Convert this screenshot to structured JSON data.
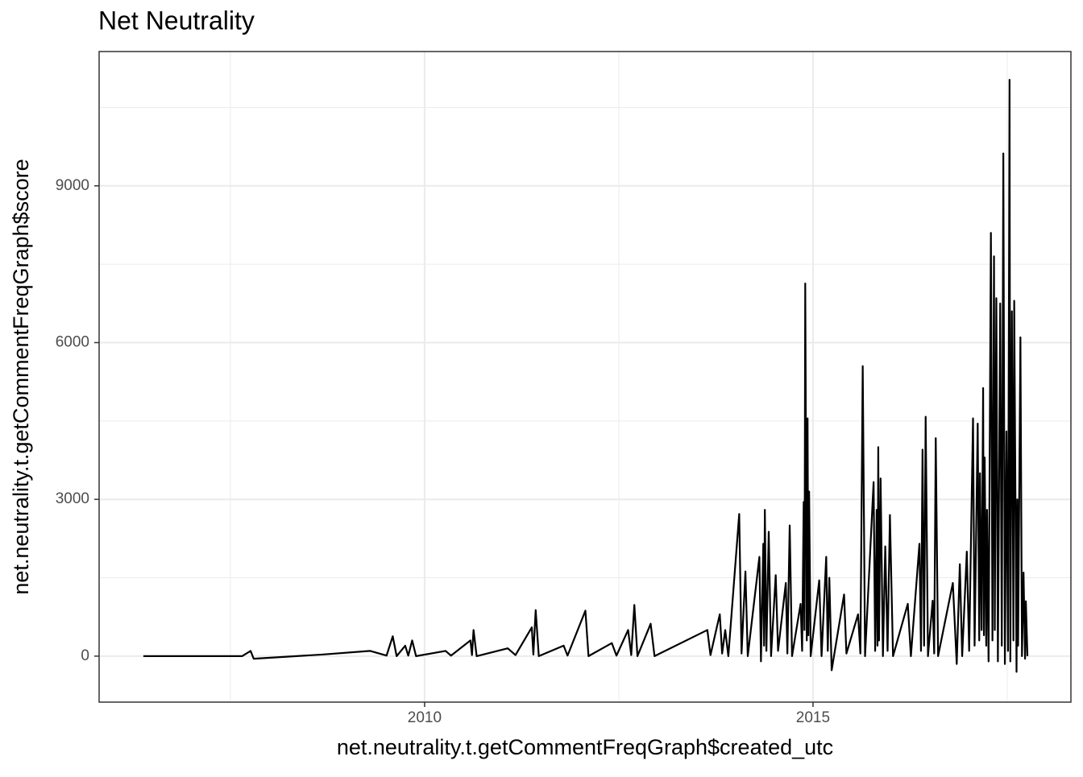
{
  "chart_data": {
    "type": "line",
    "title": "Net Neutrality",
    "x_label": "net.neutrality.t.getCommentFreqGraph$created_utc",
    "y_label": "net.neutrality.t.getCommentFreqGraph$score",
    "x": [
      2006.38,
      2007.65,
      2007.76,
      2007.8,
      2008.68,
      2009.3,
      2009.51,
      2009.59,
      2009.64,
      2009.75,
      2009.79,
      2009.84,
      2009.89,
      2010.27,
      2010.34,
      2010.59,
      2010.61,
      2010.63,
      2010.67,
      2011.07,
      2011.17,
      2011.38,
      2011.4,
      2011.43,
      2011.47,
      2011.79,
      2011.84,
      2012.07,
      2012.11,
      2012.41,
      2012.47,
      2012.62,
      2012.66,
      2012.7,
      2012.74,
      2012.91,
      2012.96,
      2013.64,
      2013.68,
      2013.8,
      2013.83,
      2013.87,
      2013.91,
      2014.05,
      2014.08,
      2014.13,
      2014.16,
      2014.31,
      2014.33,
      2014.36,
      2014.37,
      2014.38,
      2014.4,
      2014.43,
      2014.46,
      2014.52,
      2014.55,
      2014.65,
      2014.67,
      2014.7,
      2014.73,
      2014.84,
      2014.86,
      2014.88,
      2014.89,
      2014.9,
      2014.92,
      2014.93,
      2014.94,
      2014.95,
      2014.97,
      2015.08,
      2015.11,
      2015.17,
      2015.19,
      2015.21,
      2015.24,
      2015.4,
      2015.43,
      2015.58,
      2015.61,
      2015.64,
      2015.67,
      2015.78,
      2015.8,
      2015.82,
      2015.83,
      2015.84,
      2015.85,
      2015.87,
      2015.9,
      2015.93,
      2015.96,
      2015.99,
      2016.03,
      2016.22,
      2016.26,
      2016.37,
      2016.39,
      2016.41,
      2016.43,
      2016.45,
      2016.48,
      2016.54,
      2016.56,
      2016.58,
      2016.61,
      2016.8,
      2016.85,
      2016.89,
      2016.92,
      2016.98,
      2017.01,
      2017.06,
      2017.08,
      2017.12,
      2017.14,
      2017.15,
      2017.17,
      2017.19,
      2017.2,
      2017.21,
      2017.23,
      2017.24,
      2017.26,
      2017.29,
      2017.31,
      2017.33,
      2017.34,
      2017.36,
      2017.38,
      2017.41,
      2017.43,
      2017.45,
      2017.47,
      2017.49,
      2017.51,
      2017.53,
      2017.54,
      2017.56,
      2017.58,
      2017.59,
      2017.62,
      2017.63,
      2017.64,
      2017.67,
      2017.69,
      2017.71,
      2017.73,
      2017.74,
      2017.76
    ],
    "series": [
      {
        "name": "score",
        "color": "#000000",
        "values": [
          0,
          0,
          100,
          -50,
          30,
          100,
          10,
          380,
          0,
          200,
          10,
          300,
          0,
          100,
          10,
          300,
          20,
          500,
          0,
          150,
          20,
          550,
          30,
          880,
          0,
          200,
          10,
          870,
          0,
          250,
          10,
          500,
          20,
          980,
          0,
          620,
          0,
          500,
          20,
          800,
          50,
          500,
          0,
          2720,
          50,
          1620,
          0,
          1900,
          -100,
          2150,
          200,
          2800,
          100,
          2380,
          0,
          1550,
          100,
          1400,
          50,
          2500,
          0,
          1000,
          100,
          2950,
          500,
          7130,
          300,
          4550,
          400,
          3150,
          0,
          1450,
          0,
          1900,
          100,
          1500,
          -270,
          1180,
          50,
          800,
          50,
          5550,
          0,
          3330,
          100,
          2800,
          200,
          4000,
          300,
          3400,
          0,
          2100,
          100,
          2700,
          0,
          1000,
          0,
          2150,
          100,
          3950,
          200,
          4580,
          0,
          1060,
          50,
          4170,
          0,
          1400,
          -150,
          1760,
          0,
          2000,
          100,
          4550,
          200,
          4450,
          300,
          3500,
          500,
          5130,
          400,
          3800,
          200,
          2800,
          -100,
          8100,
          300,
          7650,
          500,
          6850,
          -100,
          6750,
          200,
          9620,
          -150,
          4300,
          100,
          11030,
          -100,
          6600,
          300,
          6800,
          -300,
          3000,
          200,
          6100,
          0,
          1600,
          -50,
          1050,
          0
        ]
      }
    ],
    "xlim": [
      2005.81,
      2018.32
    ],
    "ylim": [
      -880,
      11570
    ],
    "xticks": [
      2010,
      2015
    ],
    "yticks": [
      0,
      3000,
      6000,
      9000
    ],
    "grid": true
  }
}
